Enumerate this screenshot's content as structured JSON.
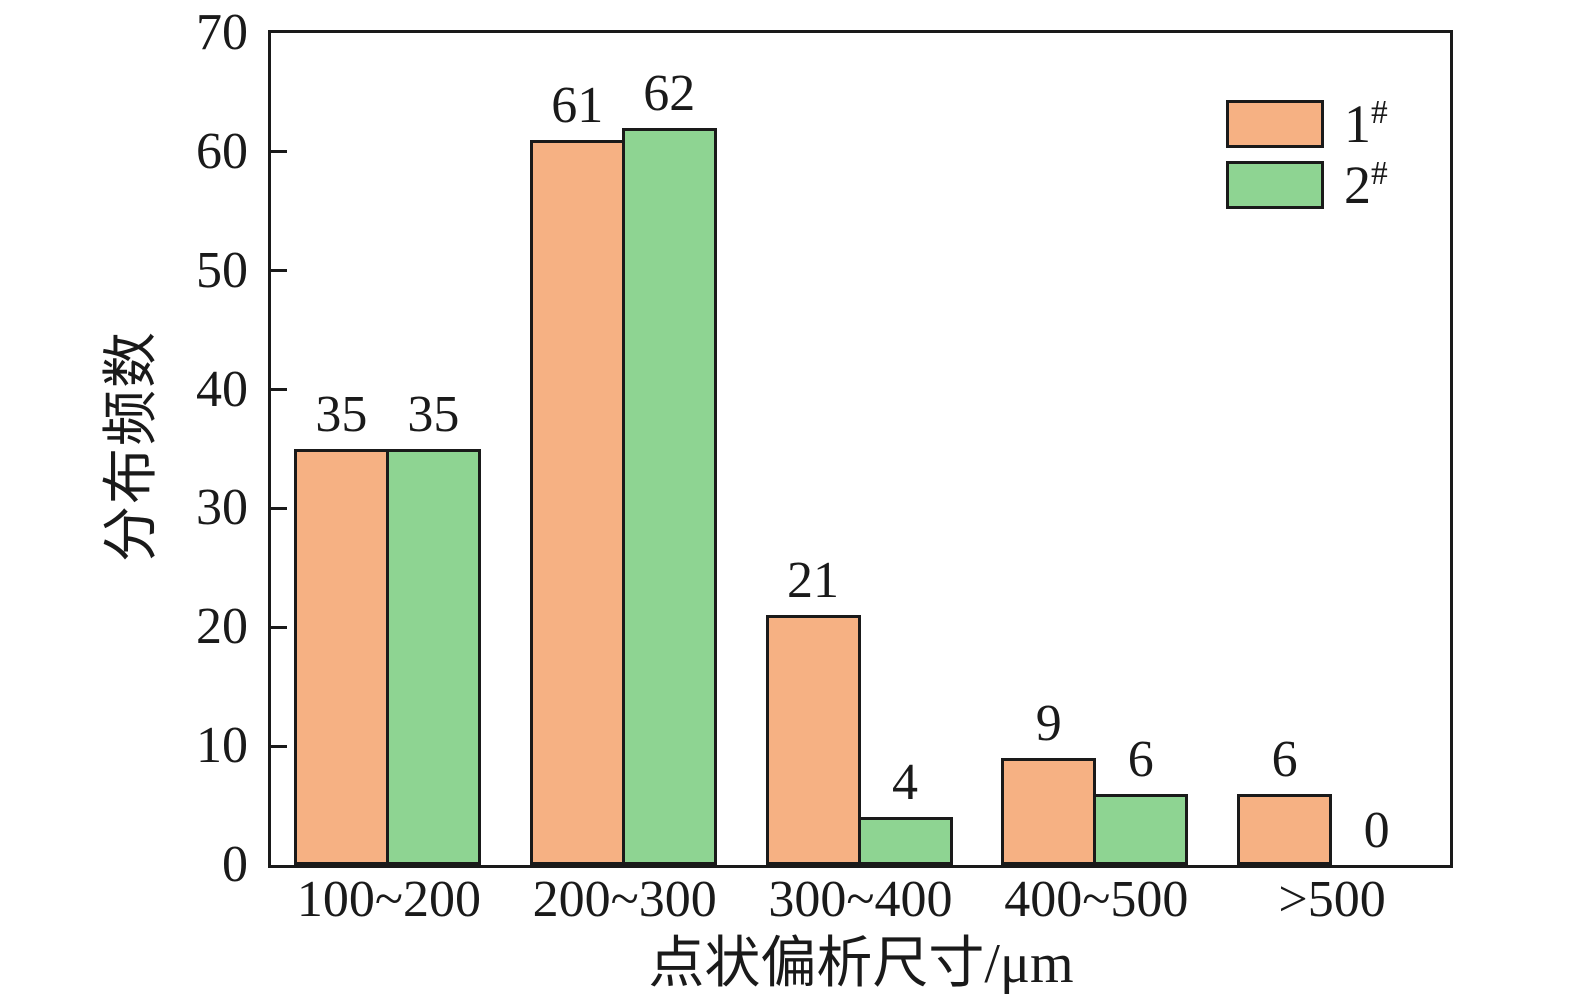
{
  "chart_data": {
    "type": "bar",
    "title": "",
    "categories": [
      "100~200",
      "200~300",
      "300~400",
      "400~500",
      ">500"
    ],
    "series": [
      {
        "name": "1#",
        "color": "#F6B183",
        "values": [
          35,
          61,
          21,
          9,
          6
        ]
      },
      {
        "name": "2#",
        "color": "#8ED492",
        "values": [
          35,
          62,
          4,
          6,
          0
        ]
      }
    ],
    "value_labels": [
      [
        "35",
        "61",
        "21",
        "9",
        "6"
      ],
      [
        "35",
        "62",
        "4",
        "6",
        "0"
      ]
    ],
    "xlabel": "点状偏析尺寸/μm",
    "ylabel": "分布频数",
    "ylim": [
      0,
      70
    ],
    "yticks": [
      "0",
      "10",
      "20",
      "30",
      "40",
      "50",
      "60",
      "70"
    ],
    "grid": false,
    "legend_position": "top-right",
    "bar_edge_color": "#1a1a1a",
    "axis_color": "#1a1a1a"
  }
}
